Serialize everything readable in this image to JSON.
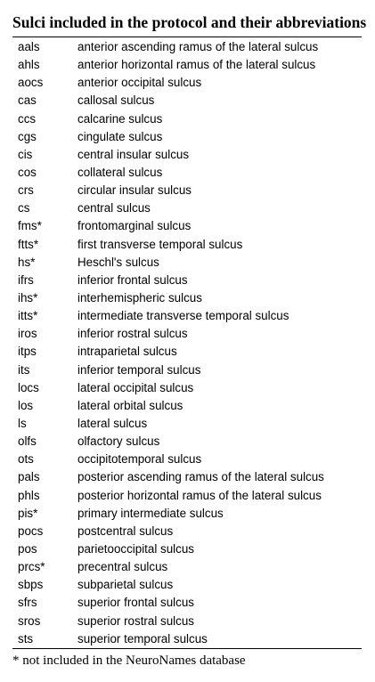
{
  "title": "Sulci included in the protocol and their abbreviations",
  "rows": [
    {
      "abbr": "aals",
      "name": "anterior ascending ramus of the lateral sulcus"
    },
    {
      "abbr": "ahls",
      "name": "anterior horizontal ramus of the lateral sulcus"
    },
    {
      "abbr": "aocs",
      "name": "anterior occipital sulcus"
    },
    {
      "abbr": "cas",
      "name": "callosal sulcus"
    },
    {
      "abbr": "ccs",
      "name": "calcarine sulcus"
    },
    {
      "abbr": "cgs",
      "name": "cingulate sulcus"
    },
    {
      "abbr": "cis",
      "name": "central insular sulcus"
    },
    {
      "abbr": "cos",
      "name": "collateral sulcus"
    },
    {
      "abbr": "crs",
      "name": "circular insular sulcus"
    },
    {
      "abbr": "cs",
      "name": "central sulcus"
    },
    {
      "abbr": "fms*",
      "name": "frontomarginal sulcus"
    },
    {
      "abbr": "ftts*",
      "name": "first transverse temporal sulcus"
    },
    {
      "abbr": "hs*",
      "name": "Heschl's sulcus"
    },
    {
      "abbr": "ifrs",
      "name": "inferior frontal sulcus"
    },
    {
      "abbr": "ihs*",
      "name": "interhemispheric sulcus"
    },
    {
      "abbr": "itts*",
      "name": "intermediate transverse temporal sulcus"
    },
    {
      "abbr": "iros",
      "name": "inferior rostral sulcus"
    },
    {
      "abbr": "itps",
      "name": "intraparietal sulcus"
    },
    {
      "abbr": "its",
      "name": "inferior temporal sulcus"
    },
    {
      "abbr": "locs",
      "name": "lateral occipital sulcus"
    },
    {
      "abbr": "los",
      "name": "lateral orbital sulcus"
    },
    {
      "abbr": "ls",
      "name": "lateral sulcus"
    },
    {
      "abbr": "olfs",
      "name": "olfactory sulcus"
    },
    {
      "abbr": "ots",
      "name": "occipitotemporal sulcus"
    },
    {
      "abbr": "pals",
      "name": "posterior ascending ramus of the lateral sulcus"
    },
    {
      "abbr": "phls",
      "name": "posterior horizontal ramus of the lateral sulcus"
    },
    {
      "abbr": "pis*",
      "name": "primary intermediate sulcus"
    },
    {
      "abbr": "pocs",
      "name": "postcentral sulcus"
    },
    {
      "abbr": "pos",
      "name": "parietooccipital sulcus"
    },
    {
      "abbr": "prcs*",
      "name": "precentral sulcus"
    },
    {
      "abbr": "sbps",
      "name": "subparietal sulcus"
    },
    {
      "abbr": "sfrs",
      "name": "superior frontal sulcus"
    },
    {
      "abbr": "sros",
      "name": "superior rostral sulcus"
    },
    {
      "abbr": "sts",
      "name": "superior temporal sulcus"
    }
  ],
  "footnote": "* not included in the NeuroNames database"
}
